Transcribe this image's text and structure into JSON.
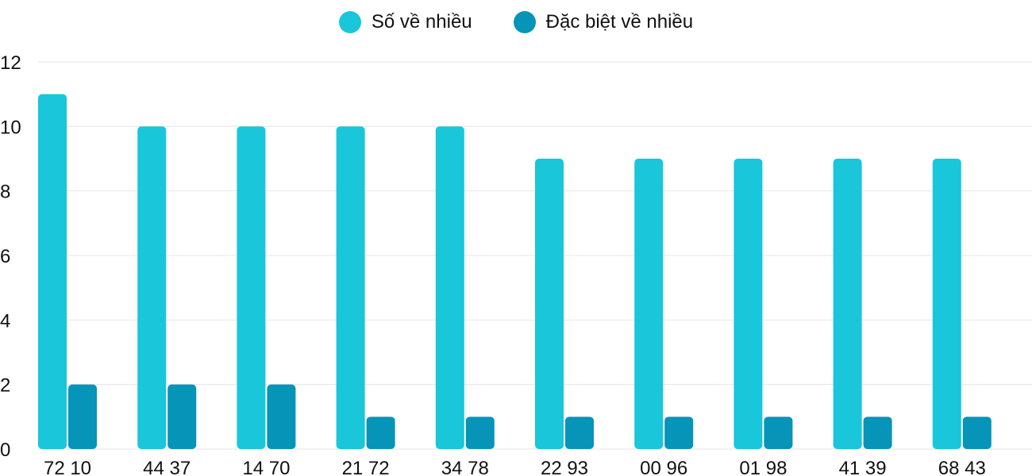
{
  "chart_data": {
    "type": "bar",
    "title": "",
    "xlabel": "",
    "ylabel": "",
    "ylim": [
      0,
      12
    ],
    "yticks": [
      0,
      2,
      4,
      6,
      8,
      10,
      12
    ],
    "grid": true,
    "legend_placement": "top-center",
    "categories": [
      "72 10",
      "44 37",
      "14 70",
      "21 72",
      "34 78",
      "22 93",
      "00 96",
      "01 98",
      "41 39",
      "68 43"
    ],
    "series": [
      {
        "name": "Số về nhiều",
        "color": "#19c6da",
        "values": [
          11,
          10,
          10,
          10,
          10,
          9,
          9,
          9,
          9,
          9
        ]
      },
      {
        "name": "Đặc biệt về nhiều",
        "color": "#0694b8",
        "values": [
          2,
          2,
          2,
          1,
          1,
          1,
          1,
          1,
          1,
          1
        ]
      }
    ]
  }
}
